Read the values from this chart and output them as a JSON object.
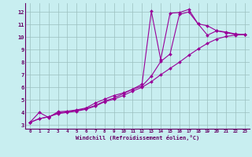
{
  "xlabel": "Windchill (Refroidissement éolien,°C)",
  "background_color": "#c8eef0",
  "line_color": "#990099",
  "grid_color": "#9bbfbf",
  "xlim": [
    -0.5,
    23.5
  ],
  "ylim": [
    2.7,
    12.7
  ],
  "xticks": [
    0,
    1,
    2,
    3,
    4,
    5,
    6,
    7,
    8,
    9,
    10,
    11,
    12,
    13,
    14,
    15,
    16,
    17,
    18,
    19,
    20,
    21,
    22,
    23
  ],
  "yticks": [
    3,
    4,
    5,
    6,
    7,
    8,
    9,
    10,
    11,
    12
  ],
  "line1_x": [
    0,
    1,
    2,
    3,
    4,
    5,
    6,
    7,
    8,
    9,
    10,
    11,
    12,
    13,
    14,
    15,
    16,
    17,
    18,
    19,
    20,
    21,
    22,
    23
  ],
  "line1_y": [
    3.2,
    4.0,
    3.6,
    4.05,
    4.1,
    4.2,
    4.35,
    4.75,
    5.05,
    5.35,
    5.55,
    5.85,
    6.25,
    12.05,
    8.2,
    11.9,
    11.95,
    12.2,
    11.05,
    10.9,
    10.5,
    10.4,
    10.25,
    10.2
  ],
  "line2_x": [
    0,
    1,
    2,
    3,
    4,
    5,
    6,
    7,
    8,
    9,
    10,
    11,
    12,
    13,
    14,
    15,
    16,
    17,
    18,
    19,
    20,
    21,
    22,
    23
  ],
  "line2_y": [
    3.2,
    3.5,
    3.65,
    3.95,
    4.05,
    4.15,
    4.3,
    4.55,
    4.9,
    5.15,
    5.5,
    5.85,
    6.1,
    6.9,
    8.05,
    8.65,
    11.8,
    12.0,
    11.05,
    10.15,
    10.5,
    10.35,
    10.2,
    10.2
  ],
  "line3_x": [
    0,
    1,
    2,
    3,
    4,
    5,
    6,
    7,
    8,
    9,
    10,
    11,
    12,
    13,
    14,
    15,
    16,
    17,
    18,
    19,
    20,
    21,
    22,
    23
  ],
  "line3_y": [
    3.2,
    3.5,
    3.65,
    3.9,
    4.0,
    4.1,
    4.25,
    4.5,
    4.85,
    5.05,
    5.35,
    5.7,
    6.0,
    6.45,
    7.0,
    7.5,
    8.0,
    8.55,
    9.05,
    9.5,
    9.85,
    10.05,
    10.15,
    10.2
  ]
}
